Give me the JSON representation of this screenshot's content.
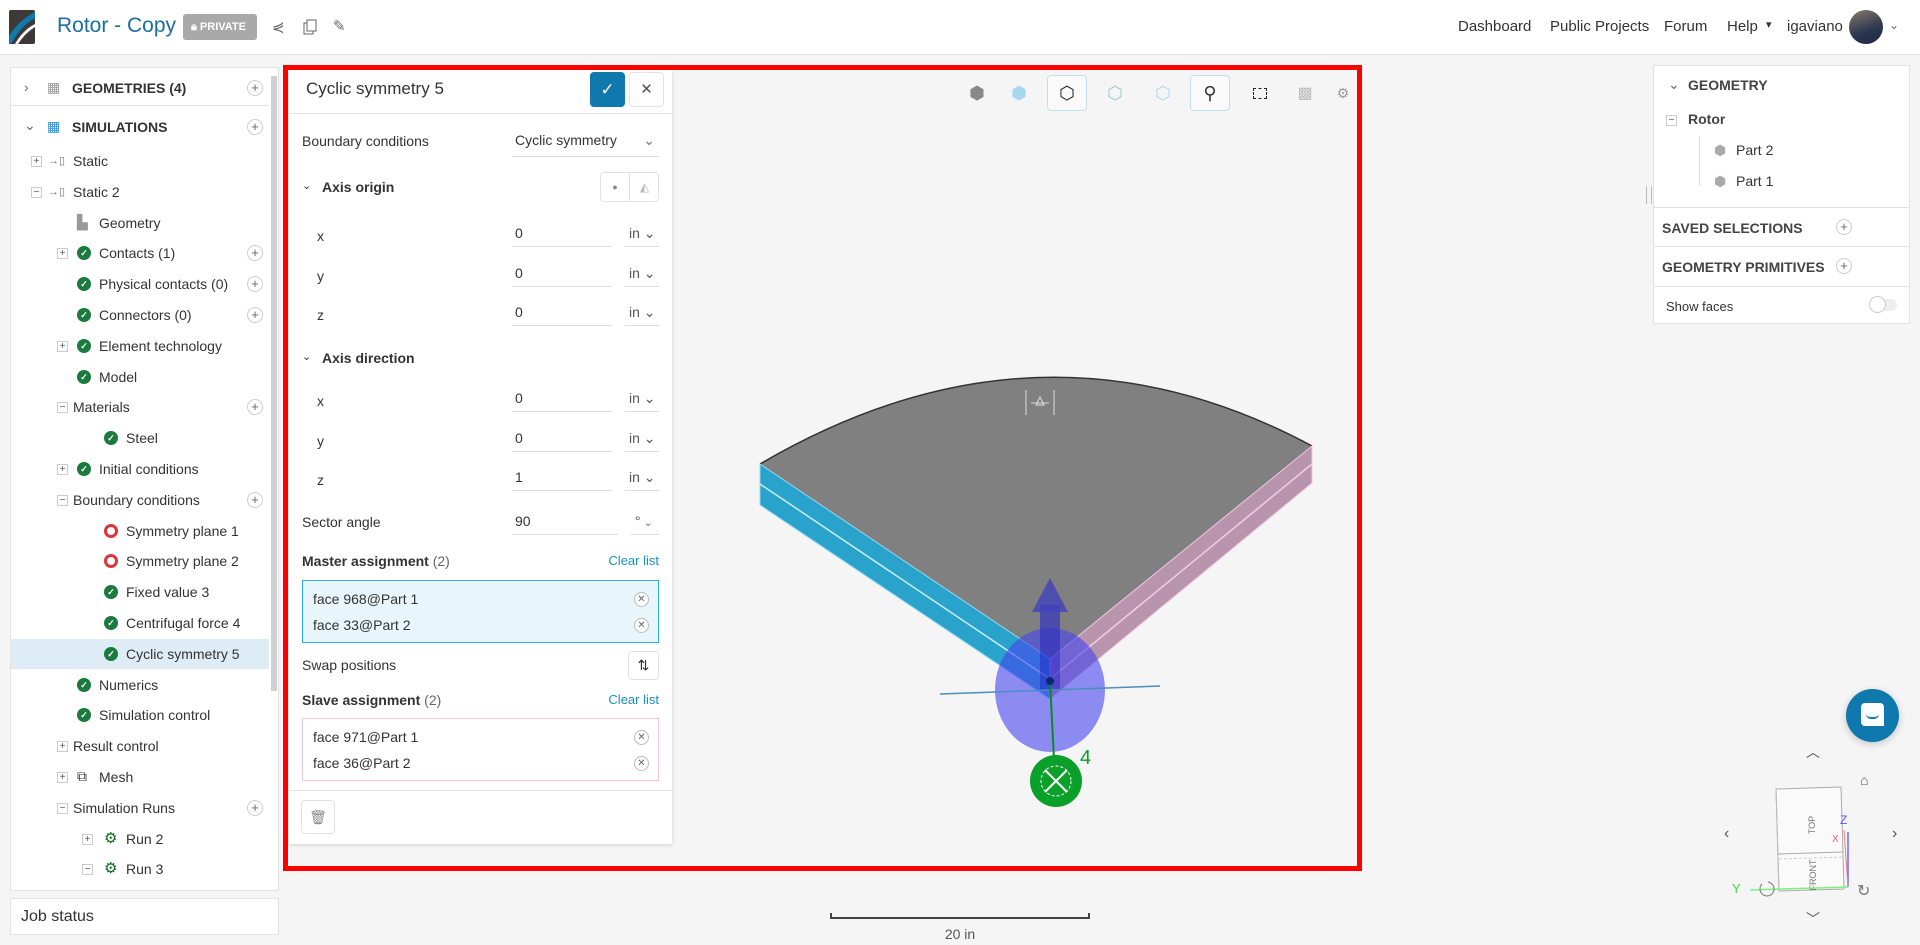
{
  "header": {
    "title": "Rotor - Copy",
    "badge": "PRIVATE",
    "nav": [
      "Dashboard",
      "Public Projects",
      "Forum",
      "Help"
    ],
    "user": "igaviano"
  },
  "sidebar": {
    "geometries": "GEOMETRIES (4)",
    "simulations": "SIMULATIONS",
    "items": [
      {
        "label": "Static",
        "level": 1,
        "toggle": "+",
        "icon": "analysis"
      },
      {
        "label": "Static 2",
        "level": 1,
        "toggle": "-",
        "icon": "analysis"
      },
      {
        "label": "Geometry",
        "level": 2,
        "icon": "geometry"
      },
      {
        "label": "Contacts (1)",
        "level": 2,
        "toggle": "+",
        "icon": "check",
        "plus": true
      },
      {
        "label": "Physical contacts (0)",
        "level": 2,
        "icon": "check",
        "plus": true
      },
      {
        "label": "Connectors (0)",
        "level": 2,
        "icon": "check",
        "plus": true
      },
      {
        "label": "Element technology",
        "level": 2,
        "toggle": "+",
        "icon": "check"
      },
      {
        "label": "Model",
        "level": 2,
        "icon": "check"
      },
      {
        "label": "Materials",
        "level": 2,
        "toggle": "-",
        "icon": "none",
        "plus": true
      },
      {
        "label": "Steel",
        "level": 3,
        "icon": "check"
      },
      {
        "label": "Initial conditions",
        "level": 2,
        "toggle": "+",
        "icon": "check"
      },
      {
        "label": "Boundary conditions",
        "level": 2,
        "toggle": "-",
        "icon": "none",
        "plus": true
      },
      {
        "label": "Symmetry plane 1",
        "level": 3,
        "icon": "error"
      },
      {
        "label": "Symmetry plane 2",
        "level": 3,
        "icon": "error"
      },
      {
        "label": "Fixed value 3",
        "level": 3,
        "icon": "check"
      },
      {
        "label": "Centrifugal force 4",
        "level": 3,
        "icon": "check"
      },
      {
        "label": "Cyclic symmetry 5",
        "level": 3,
        "icon": "check",
        "selected": true
      },
      {
        "label": "Numerics",
        "level": 2,
        "icon": "check"
      },
      {
        "label": "Simulation control",
        "level": 2,
        "icon": "check"
      },
      {
        "label": "Result control",
        "level": 2,
        "toggle": "+",
        "icon": "none"
      },
      {
        "label": "Mesh",
        "level": 2,
        "toggle": "+",
        "icon": "mesh"
      },
      {
        "label": "Simulation Runs",
        "level": 2,
        "toggle": "-",
        "icon": "none",
        "plus": true
      },
      {
        "label": "Run 2",
        "level": 3,
        "toggle": "+",
        "icon": "run"
      },
      {
        "label": "Run 3",
        "level": 3,
        "toggle": "-",
        "icon": "run"
      }
    ],
    "job_status": "Job status"
  },
  "panel": {
    "title": "Cyclic symmetry 5",
    "bc_label": "Boundary conditions",
    "bc_value": "Cyclic symmetry",
    "axis_origin": "Axis origin",
    "origin": [
      {
        "axis": "x",
        "value": "0",
        "unit": "in"
      },
      {
        "axis": "y",
        "value": "0",
        "unit": "in"
      },
      {
        "axis": "z",
        "value": "0",
        "unit": "in"
      }
    ],
    "axis_direction": "Axis direction",
    "direction": [
      {
        "axis": "x",
        "value": "0",
        "unit": "in"
      },
      {
        "axis": "y",
        "value": "0",
        "unit": "in"
      },
      {
        "axis": "z",
        "value": "1",
        "unit": "in"
      }
    ],
    "sector_label": "Sector angle",
    "sector_value": "90",
    "sector_unit": "°",
    "master_label": "Master assignment",
    "master_count": "(2)",
    "clear": "Clear list",
    "master": [
      "face 968@Part 1",
      "face 33@Part 2"
    ],
    "swap": "Swap positions",
    "slave_label": "Slave assignment",
    "slave_count": "(2)",
    "slave": [
      "face 971@Part 1",
      "face 36@Part 2"
    ]
  },
  "right": {
    "geometry": "GEOMETRY",
    "rotor": "Rotor",
    "parts": [
      "Part 2",
      "Part 1"
    ],
    "saved": "SAVED SELECTIONS",
    "primitives": "GEOMETRY PRIMITIVES",
    "show_faces": "Show faces",
    "show_faces_on": false
  },
  "viewport": {
    "scale": "20 in",
    "load_label": "4",
    "cube": {
      "top": "TOP",
      "front": "FRONT",
      "x": "X",
      "y": "Y",
      "z": "Z"
    }
  },
  "colors": {
    "brand": "#1a6fa0",
    "accent": "#0f78ad",
    "master": "#29a3cc",
    "slave": "#d9a5c7",
    "ok": "#1b7a3e",
    "error": "#e0323c"
  }
}
